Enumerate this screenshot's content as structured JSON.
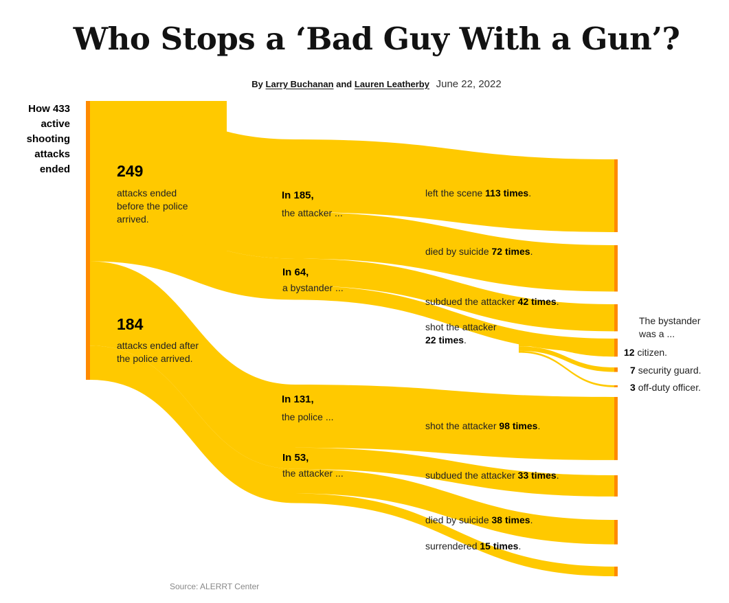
{
  "headline": "Who Stops a ‘Bad Guy With a Gun’?",
  "byline": {
    "by": "By",
    "author1": "Larry Buchanan",
    "and": "and",
    "author2": "Lauren Leatherby",
    "date": "June 22, 2022"
  },
  "left_heading": "How 433 active shooting attacks ended",
  "nodes": {
    "before": {
      "number": "249",
      "text": "attacks ended before the police arrived."
    },
    "after": {
      "number": "184",
      "text": "attacks ended after the police arrived."
    },
    "attacker_before": {
      "head": "In 185,",
      "sub": "the attacker ..."
    },
    "bystander": {
      "head": "In 64,",
      "sub": "a bystander ..."
    },
    "police": {
      "head": "In 131,",
      "sub": "the police ..."
    },
    "attacker_after": {
      "head": "In 53,",
      "sub": "the attacker ..."
    }
  },
  "outcomes": {
    "left_scene": {
      "pre": "left the scene ",
      "bold": "113 times",
      "post": "."
    },
    "suicide_before": {
      "pre": "died by suicide ",
      "bold": "72 times",
      "post": "."
    },
    "subdued_bystander": {
      "pre": "subdued the attacker ",
      "bold": "42 times",
      "post": "."
    },
    "shot_bystander": {
      "pre": "shot the attacker",
      "bold": "22 times",
      "post": "."
    },
    "shot_police": {
      "pre": "shot the attacker ",
      "bold": "98 times",
      "post": "."
    },
    "subdued_police": {
      "pre": "subdued the attacker ",
      "bold": "33 times",
      "post": "."
    },
    "suicide_after": {
      "pre": "died by suicide ",
      "bold": "38 times",
      "post": "."
    },
    "surrendered": {
      "pre": "surrendered ",
      "bold": "15 times",
      "post": "."
    }
  },
  "bystander_type": {
    "heading": "The bystander was a ...",
    "items": [
      {
        "count": "12",
        "label": "citizen."
      },
      {
        "count": "7",
        "label": "security guard."
      },
      {
        "count": "3",
        "label": "off-duty officer."
      }
    ]
  },
  "source": "Source: ALERRT Center",
  "colors": {
    "flow": "#ffc900",
    "bar": "#ff8a00",
    "text": "#121212"
  },
  "chart_data": {
    "type": "sankey",
    "title": "Who Stops a ‘Bad Guy With a Gun’?",
    "total": 433,
    "links": [
      {
        "source": "Active shooting attacks",
        "target": "Ended before police arrived",
        "value": 249
      },
      {
        "source": "Active shooting attacks",
        "target": "Ended after police arrived",
        "value": 184
      },
      {
        "source": "Ended before police arrived",
        "target": "The attacker",
        "value": 185
      },
      {
        "source": "Ended before police arrived",
        "target": "A bystander",
        "value": 64
      },
      {
        "source": "Ended after police arrived",
        "target": "The police",
        "value": 131
      },
      {
        "source": "Ended after police arrived",
        "target": "The attacker (after)",
        "value": 53
      },
      {
        "source": "The attacker",
        "target": "Left the scene",
        "value": 113
      },
      {
        "source": "The attacker",
        "target": "Died by suicide (before)",
        "value": 72
      },
      {
        "source": "A bystander",
        "target": "Subdued the attacker (bystander)",
        "value": 42
      },
      {
        "source": "A bystander",
        "target": "Shot the attacker (bystander)",
        "value": 22
      },
      {
        "source": "The police",
        "target": "Shot the attacker (police)",
        "value": 98
      },
      {
        "source": "The police",
        "target": "Subdued the attacker (police)",
        "value": 33
      },
      {
        "source": "The attacker (after)",
        "target": "Died by suicide (after)",
        "value": 38
      },
      {
        "source": "The attacker (after)",
        "target": "Surrendered",
        "value": 15
      },
      {
        "source": "Shot the attacker (bystander)",
        "target": "Citizen",
        "value": 12
      },
      {
        "source": "Shot the attacker (bystander)",
        "target": "Security guard",
        "value": 7
      },
      {
        "source": "Shot the attacker (bystander)",
        "target": "Off-duty officer",
        "value": 3
      }
    ]
  }
}
